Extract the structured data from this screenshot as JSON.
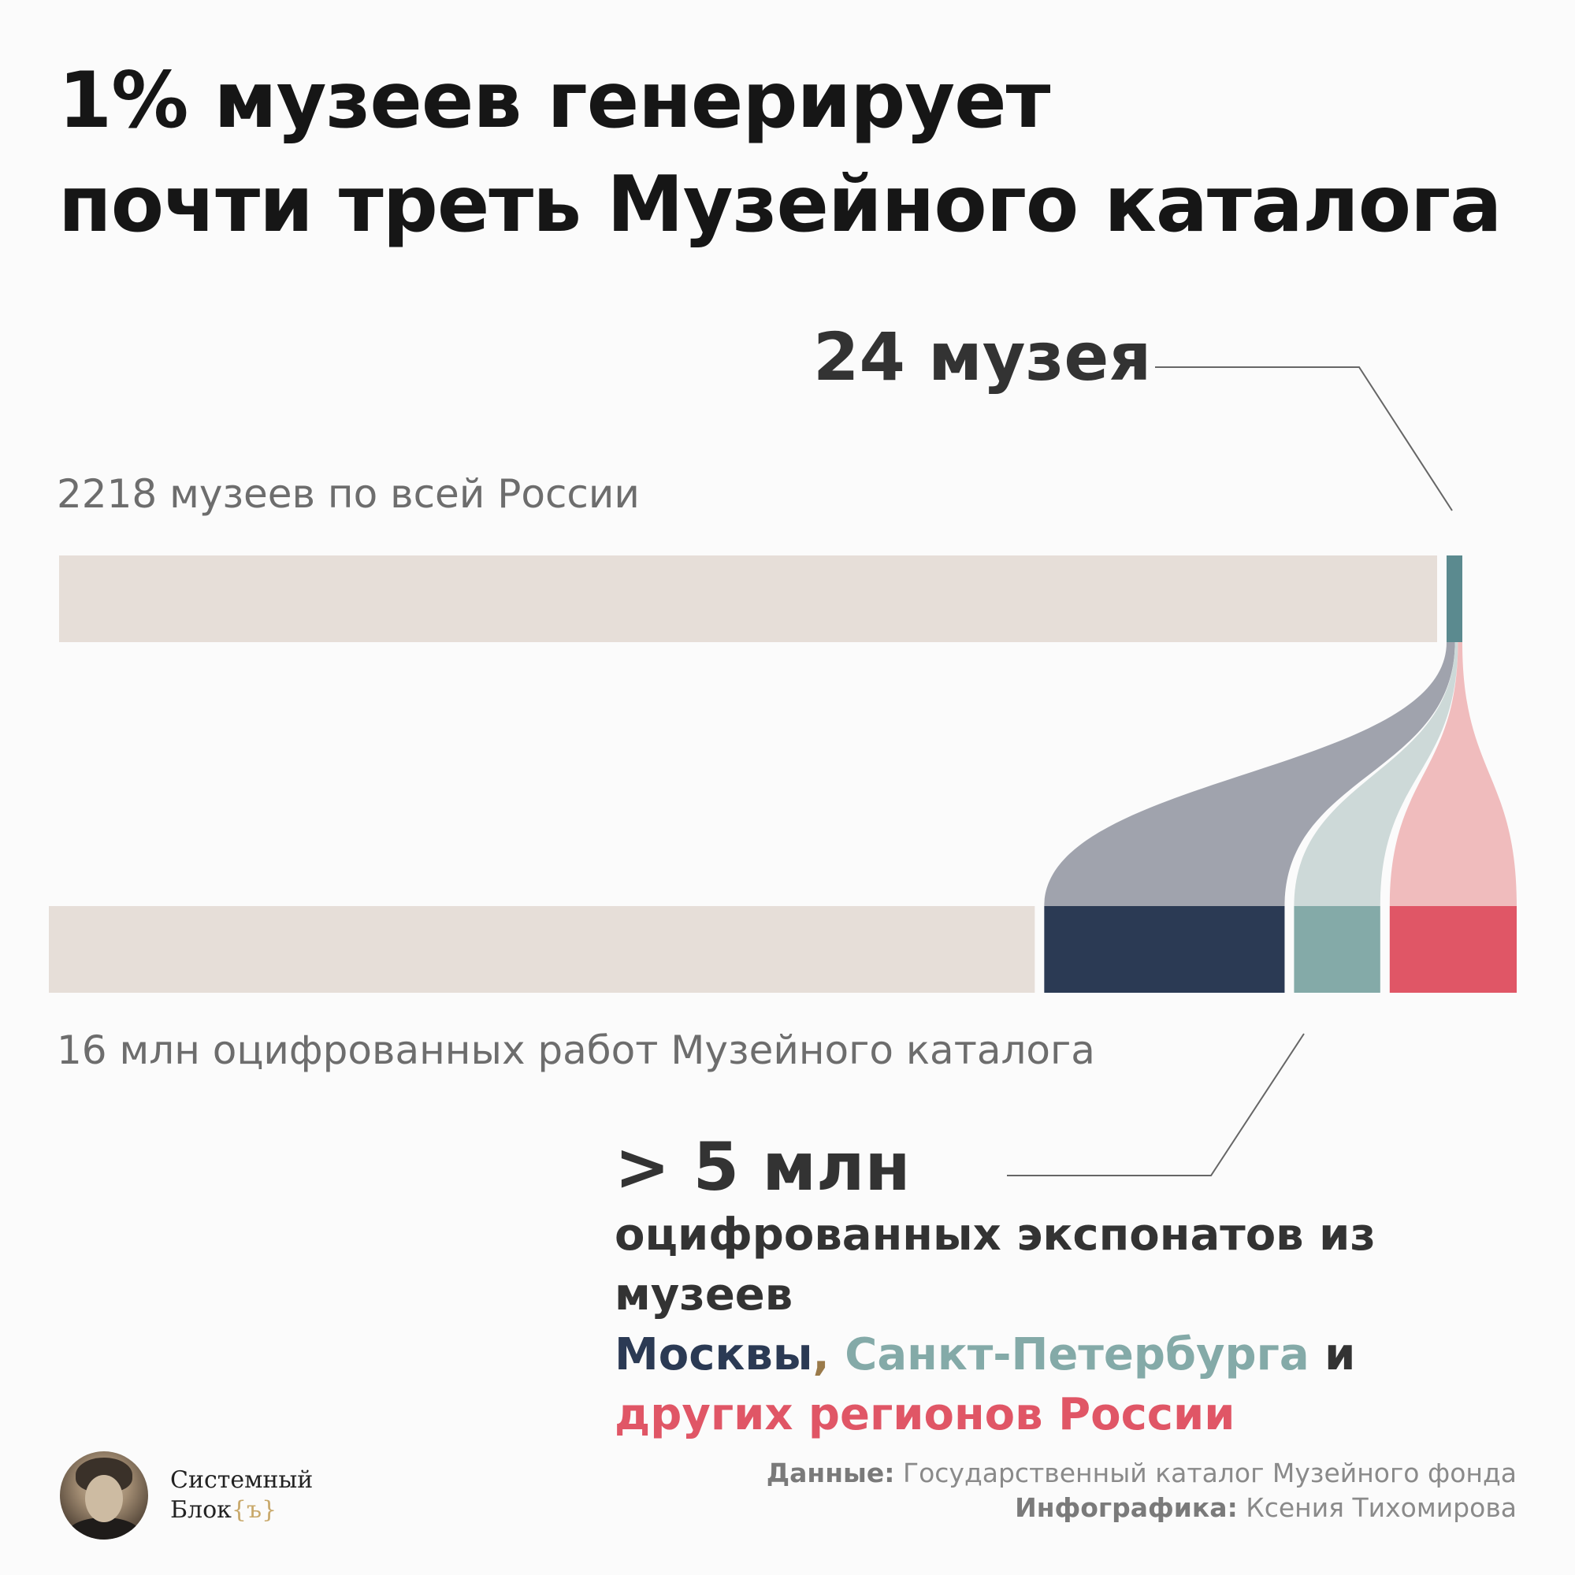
{
  "title": {
    "line1": "1% музеев генерирует",
    "line2": "почти треть Музейного каталога"
  },
  "labels": {
    "museums_total": "2218 музеев по всей России",
    "works_total": "16 млн оцифрованных работ Музейного каталога",
    "museums_top": "24 музея",
    "works_top": "> 5 млн"
  },
  "description": {
    "line1": "оцифрованных экспонатов из музеев",
    "moscow": "Москвы",
    "comma": ",",
    "spb": "Санкт-Петербурга",
    "and": "и",
    "others": "других регионов России"
  },
  "footer": {
    "logo_line1": "Системный",
    "logo_line2": "Блок",
    "logo_brace": "{ъ}",
    "data_label": "Данные:",
    "data_source": "Государственный каталог Музейного фонда",
    "infographic_label": "Инфографика:",
    "infographic_author": "Ксения Тихомирова"
  },
  "colors": {
    "rest": "#e6ded8",
    "top_museums": "#5b8a8f",
    "moscow": "#2b3a54",
    "spb": "#84aaa8",
    "others": "#e05666",
    "flow_moscow": "#a0a3ad",
    "flow_spb": "#cdd9d8",
    "flow_others": "#f0bcbd"
  },
  "chart_data": {
    "type": "sankey",
    "top_bar": {
      "total": 2218,
      "highlight": 24,
      "unit": "музеев"
    },
    "bottom_bar": {
      "total_million": 16,
      "highlight_million": 5,
      "segments": [
        {
          "name": "Москвы",
          "share": 0.53
        },
        {
          "name": "Санкт-Петербурга",
          "share": 0.19
        },
        {
          "name": "других регионов России",
          "share": 0.28
        }
      ]
    }
  }
}
